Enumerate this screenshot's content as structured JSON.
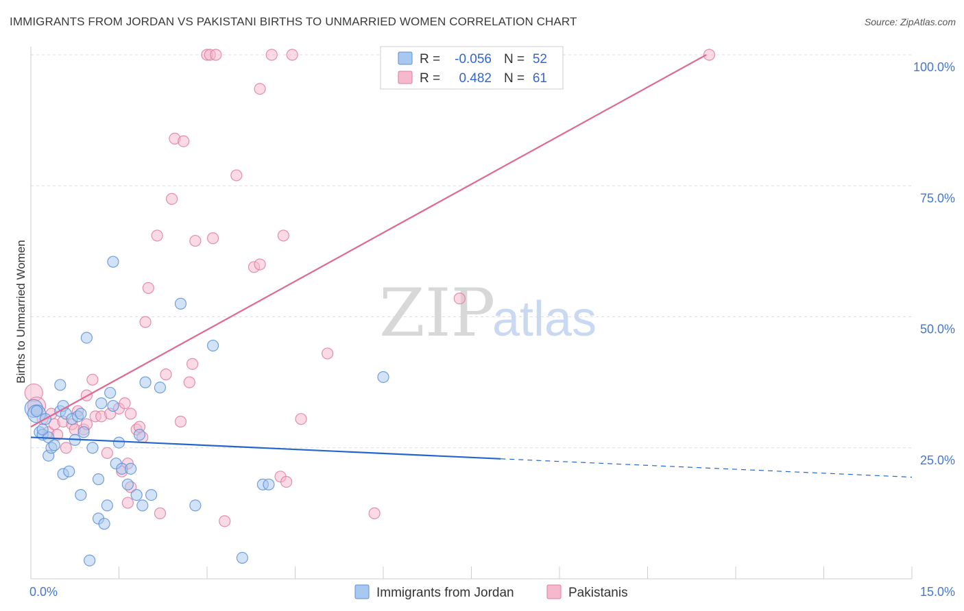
{
  "title": "IMMIGRANTS FROM JORDAN VS PAKISTANI BIRTHS TO UNMARRIED WOMEN CORRELATION CHART",
  "source": "Source: ZipAtlas.com",
  "watermark": {
    "zip": "ZIP",
    "atlas": "atlas"
  },
  "colors": {
    "jordan_fill": "#a8c8f0",
    "jordan_stroke": "#5a8fd6",
    "jordan_line": "#2266cc",
    "pakistani_fill": "#f5b8cc",
    "pakistani_stroke": "#e07aa0",
    "pakistani_line": "#e06890",
    "tick": "#4477cc",
    "grid": "#dddddd"
  },
  "legend": {
    "r_label": "R =",
    "n_label": "N =",
    "rows": [
      {
        "r": "-0.056",
        "n": "52"
      },
      {
        "r": "0.482",
        "n": "61"
      }
    ]
  },
  "chart_data": {
    "type": "scatter",
    "title": "IMMIGRANTS FROM JORDAN VS PAKISTANI BIRTHS TO UNMARRIED WOMEN CORRELATION CHART",
    "xlabel": "",
    "ylabel": "Births to Unmarried Women",
    "xlim": [
      0,
      15
    ],
    "ylim": [
      0,
      100
    ],
    "x_ticks": [
      {
        "v": 0,
        "label": "0.0%"
      },
      {
        "v": 15,
        "label": "15.0%"
      }
    ],
    "y_ticks": [
      {
        "v": 25,
        "label": "25.0%"
      },
      {
        "v": 50,
        "label": "50.0%"
      },
      {
        "v": 75,
        "label": "75.0%"
      },
      {
        "v": 100,
        "label": "100.0%"
      }
    ],
    "grid": true,
    "legend_position": "top-center",
    "series": [
      {
        "name": "Immigrants from Jordan",
        "trend": {
          "x0": 0,
          "y0": 27.0,
          "x1": 8.0,
          "y1": 22.9,
          "dashed_to_x": 15,
          "dashed_to_y": 19.4
        },
        "points": [
          [
            0.05,
            32.5
          ],
          [
            0.1,
            31.5
          ],
          [
            0.15,
            28.0
          ],
          [
            0.2,
            27.5
          ],
          [
            0.25,
            30.5
          ],
          [
            0.3,
            27.0
          ],
          [
            0.3,
            23.5
          ],
          [
            0.35,
            25.0
          ],
          [
            0.4,
            25.5
          ],
          [
            0.5,
            32.0
          ],
          [
            0.5,
            37.0
          ],
          [
            0.55,
            33.0
          ],
          [
            0.55,
            20.0
          ],
          [
            0.6,
            31.5
          ],
          [
            0.65,
            20.5
          ],
          [
            0.7,
            30.5
          ],
          [
            0.75,
            26.5
          ],
          [
            0.8,
            31.0
          ],
          [
            0.85,
            31.5
          ],
          [
            0.85,
            16.0
          ],
          [
            0.9,
            28.0
          ],
          [
            0.95,
            46.0
          ],
          [
            1.0,
            3.5
          ],
          [
            1.05,
            25.0
          ],
          [
            1.15,
            19.0
          ],
          [
            1.15,
            11.5
          ],
          [
            1.2,
            33.5
          ],
          [
            1.25,
            10.5
          ],
          [
            1.3,
            14.0
          ],
          [
            1.35,
            35.5
          ],
          [
            1.4,
            33.0
          ],
          [
            1.4,
            60.5
          ],
          [
            1.45,
            22.0
          ],
          [
            1.5,
            26.0
          ],
          [
            1.55,
            21.0
          ],
          [
            1.65,
            18.0
          ],
          [
            1.7,
            21.0
          ],
          [
            1.8,
            16.0
          ],
          [
            1.85,
            27.5
          ],
          [
            1.9,
            14.0
          ],
          [
            1.95,
            37.5
          ],
          [
            2.05,
            16.0
          ],
          [
            2.2,
            36.5
          ],
          [
            2.55,
            52.5
          ],
          [
            2.8,
            14.0
          ],
          [
            3.1,
            44.5
          ],
          [
            3.6,
            4.0
          ],
          [
            3.95,
            18.0
          ],
          [
            4.05,
            18.0
          ],
          [
            6.0,
            38.5
          ],
          [
            0.1,
            32.0
          ],
          [
            0.2,
            28.5
          ]
        ]
      },
      {
        "name": "Pakistanis",
        "trend": {
          "x0": 0,
          "y0": 29.0,
          "x1": 11.5,
          "y1": 100.0
        },
        "points": [
          [
            0.05,
            35.5
          ],
          [
            0.1,
            33.0
          ],
          [
            0.2,
            30.5
          ],
          [
            0.3,
            28.0
          ],
          [
            0.35,
            31.5
          ],
          [
            0.4,
            29.5
          ],
          [
            0.45,
            27.5
          ],
          [
            0.55,
            30.0
          ],
          [
            0.6,
            25.0
          ],
          [
            0.7,
            29.5
          ],
          [
            0.75,
            28.5
          ],
          [
            0.8,
            32.0
          ],
          [
            0.9,
            28.5
          ],
          [
            0.95,
            35.0
          ],
          [
            0.95,
            29.5
          ],
          [
            1.05,
            38.0
          ],
          [
            1.1,
            31.0
          ],
          [
            1.2,
            31.0
          ],
          [
            1.3,
            24.0
          ],
          [
            1.35,
            31.5
          ],
          [
            1.5,
            32.5
          ],
          [
            1.55,
            20.5
          ],
          [
            1.6,
            33.5
          ],
          [
            1.65,
            14.5
          ],
          [
            1.65,
            22.0
          ],
          [
            1.7,
            17.5
          ],
          [
            1.7,
            31.5
          ],
          [
            1.8,
            28.5
          ],
          [
            1.85,
            29.0
          ],
          [
            1.9,
            27.0
          ],
          [
            1.95,
            49.0
          ],
          [
            2.0,
            55.5
          ],
          [
            2.15,
            65.5
          ],
          [
            2.2,
            12.5
          ],
          [
            2.3,
            39.0
          ],
          [
            2.4,
            72.5
          ],
          [
            2.45,
            84.0
          ],
          [
            2.55,
            30.0
          ],
          [
            2.6,
            83.5
          ],
          [
            2.7,
            37.5
          ],
          [
            2.75,
            41.0
          ],
          [
            2.8,
            64.5
          ],
          [
            3.0,
            100.0
          ],
          [
            3.05,
            100.0
          ],
          [
            3.1,
            65.0
          ],
          [
            3.15,
            100.0
          ],
          [
            3.3,
            11.0
          ],
          [
            3.5,
            77.0
          ],
          [
            3.8,
            59.5
          ],
          [
            3.9,
            60.0
          ],
          [
            3.9,
            93.5
          ],
          [
            4.1,
            100.0
          ],
          [
            4.25,
            19.5
          ],
          [
            4.3,
            65.5
          ],
          [
            4.35,
            18.5
          ],
          [
            4.45,
            100.0
          ],
          [
            4.6,
            30.5
          ],
          [
            5.05,
            43.0
          ],
          [
            5.85,
            12.5
          ],
          [
            7.3,
            53.5
          ],
          [
            11.55,
            100.0
          ]
        ]
      }
    ]
  }
}
